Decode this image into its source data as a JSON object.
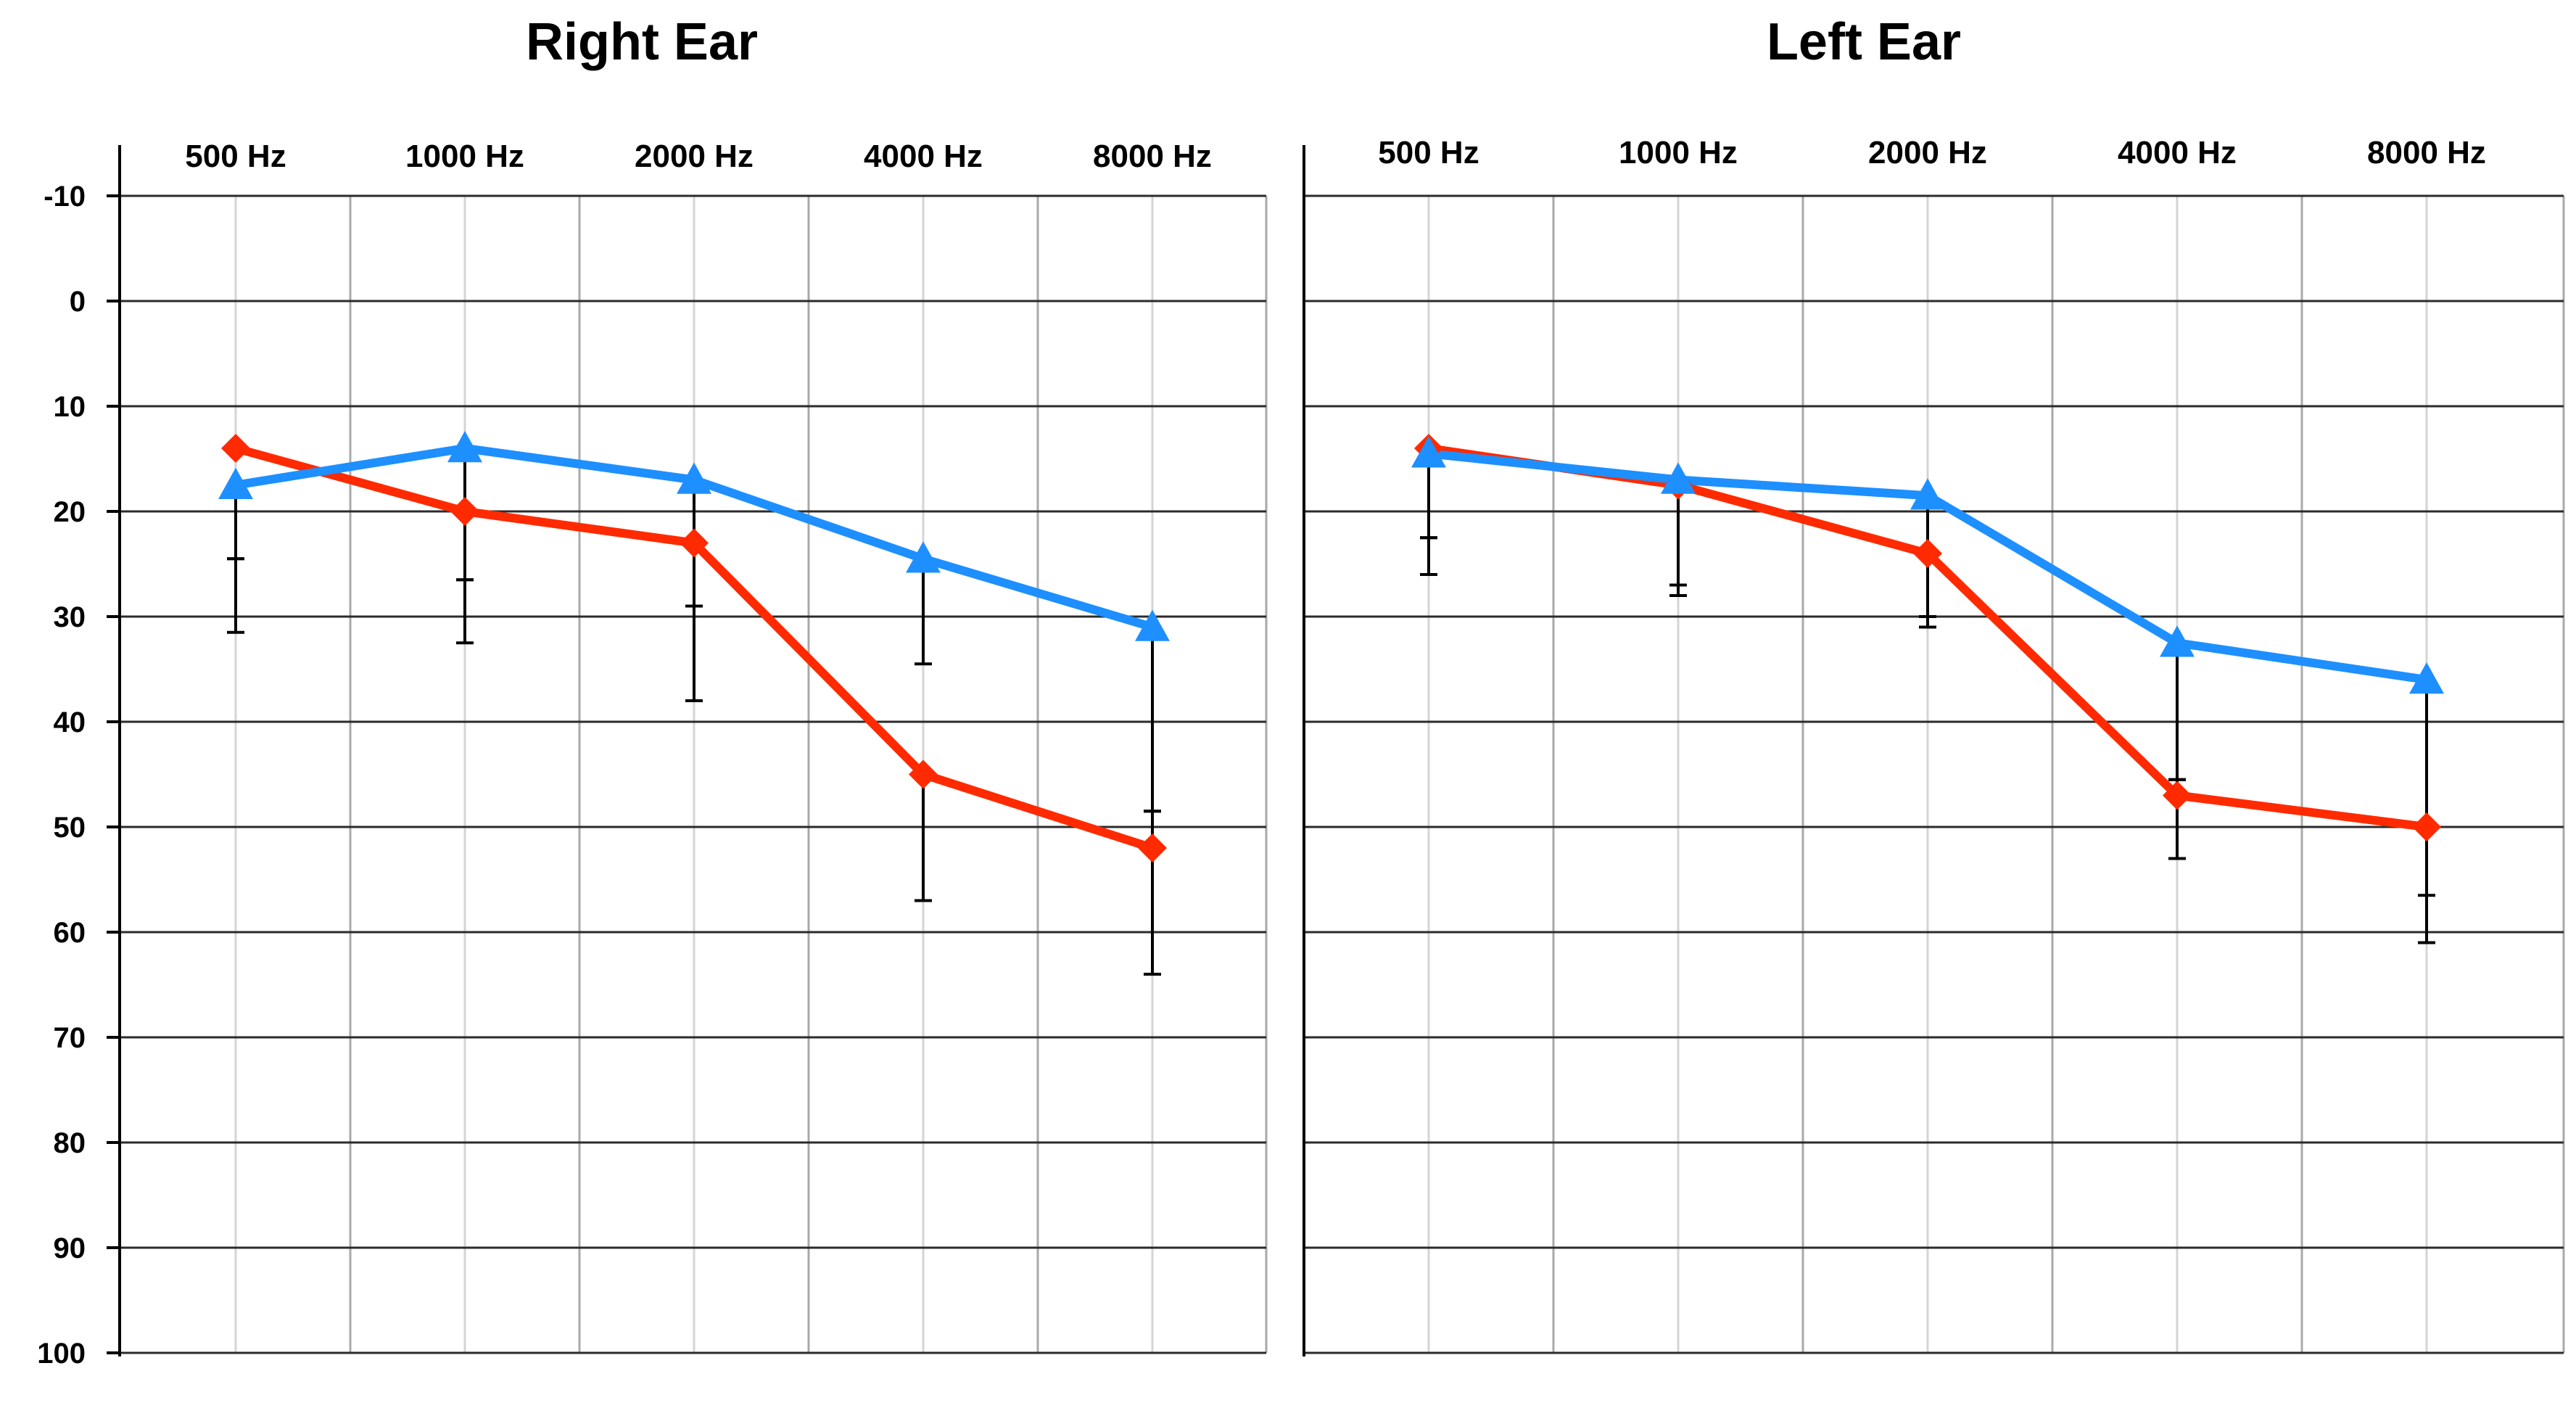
{
  "chart_data": [
    {
      "type": "line",
      "title": "Right Ear",
      "categories": [
        "500 Hz",
        "1000 Hz",
        "2000 Hz",
        "4000 Hz",
        "8000 Hz"
      ],
      "y_ticks": [
        "-10",
        "0",
        "10",
        "20",
        "30",
        "40",
        "50",
        "60",
        "70",
        "80",
        "90",
        "100"
      ],
      "ylim": [
        -10,
        100
      ],
      "y_inverted": true,
      "grid": true,
      "series": [
        {
          "color": "#ff2a00",
          "marker": "diamond",
          "values": [
            14,
            20,
            23,
            45,
            52
          ],
          "error_low": [
            24.5,
            26.5,
            29,
            45,
            48.5
          ],
          "error_high": [
            31.5,
            32.5,
            38,
            57,
            64
          ]
        },
        {
          "color": "#1e8fff",
          "marker": "triangle",
          "values": [
            17.5,
            14,
            17,
            24.5,
            31
          ],
          "error_low": [
            17.5,
            14,
            17,
            24.5,
            31
          ],
          "error_high": [
            24.5,
            26.5,
            29,
            34.5,
            48.5
          ]
        }
      ]
    },
    {
      "type": "line",
      "title": "Left Ear",
      "categories": [
        "500 Hz",
        "1000 Hz",
        "2000 Hz",
        "4000 Hz",
        "8000 Hz"
      ],
      "y_ticks": [
        "-10",
        "0",
        "10",
        "20",
        "30",
        "40",
        "50",
        "60",
        "70",
        "80",
        "90",
        "100"
      ],
      "ylim": [
        -10,
        100
      ],
      "y_inverted": true,
      "grid": true,
      "series": [
        {
          "color": "#ff2a00",
          "marker": "diamond",
          "values": [
            14,
            17.5,
            24,
            47,
            50
          ],
          "error_low": [
            22.5,
            27,
            30,
            45.5,
            50
          ],
          "error_high": [
            26,
            28,
            31,
            53,
            61
          ]
        },
        {
          "color": "#1e8fff",
          "marker": "triangle",
          "values": [
            14.5,
            17,
            18.5,
            32.5,
            36
          ],
          "error_low": [
            14.5,
            17,
            18.5,
            32.5,
            36
          ],
          "error_high": [
            22.5,
            27,
            30,
            45.5,
            56.5
          ]
        }
      ]
    }
  ]
}
